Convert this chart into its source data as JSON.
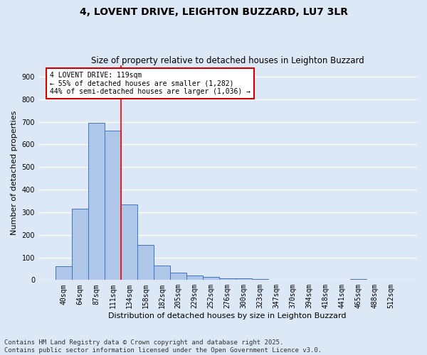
{
  "title_line1": "4, LOVENT DRIVE, LEIGHTON BUZZARD, LU7 3LR",
  "title_line2": "Size of property relative to detached houses in Leighton Buzzard",
  "xlabel": "Distribution of detached houses by size in Leighton Buzzard",
  "ylabel": "Number of detached properties",
  "categories": [
    "40sqm",
    "64sqm",
    "87sqm",
    "111sqm",
    "134sqm",
    "158sqm",
    "182sqm",
    "205sqm",
    "229sqm",
    "252sqm",
    "276sqm",
    "300sqm",
    "323sqm",
    "347sqm",
    "370sqm",
    "394sqm",
    "418sqm",
    "441sqm",
    "465sqm",
    "488sqm",
    "512sqm"
  ],
  "values": [
    60,
    315,
    695,
    660,
    335,
    155,
    65,
    33,
    20,
    13,
    8,
    8,
    5,
    0,
    0,
    0,
    0,
    0,
    5,
    0,
    0
  ],
  "bar_color": "#aec6e8",
  "bar_edge_color": "#4472c4",
  "background_color": "#dce8f5",
  "grid_color": "#ffffff",
  "red_line_x": 3.5,
  "annotation_text": "4 LOVENT DRIVE: 119sqm\n← 55% of detached houses are smaller (1,282)\n44% of semi-detached houses are larger (1,036) →",
  "annotation_box_color": "#ffffff",
  "annotation_box_edge_color": "#cc0000",
  "ylim": [
    0,
    950
  ],
  "yticks": [
    0,
    100,
    200,
    300,
    400,
    500,
    600,
    700,
    800,
    900
  ],
  "footer": "Contains HM Land Registry data © Crown copyright and database right 2025.\nContains public sector information licensed under the Open Government Licence v3.0.",
  "title_fontsize": 10,
  "subtitle_fontsize": 8.5,
  "tick_fontsize": 7,
  "ylabel_fontsize": 8,
  "xlabel_fontsize": 8,
  "footer_fontsize": 6.5,
  "ann_fontsize": 7
}
